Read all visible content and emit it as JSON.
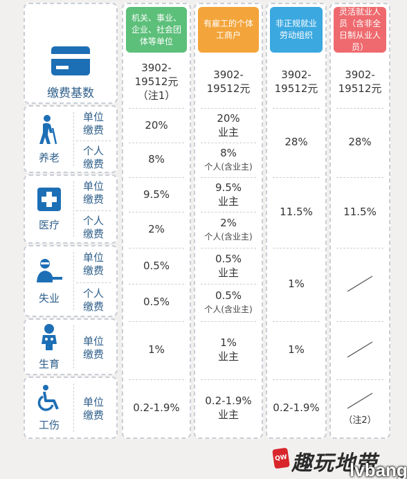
{
  "columns": [
    {
      "header": "机关、事业、企业、社会团体等单位",
      "color": "#5cbf7a"
    },
    {
      "header": "有雇工的个体工商户",
      "color": "#f3a43a"
    },
    {
      "header": "非正规就业劳动组织",
      "color": "#3ba8e0"
    },
    {
      "header": "灵活就业人员（含非全日制从业人员）",
      "color": "#ee6a6e"
    }
  ],
  "base": {
    "label": "缴费基数",
    "icon": "card-icon",
    "values": [
      {
        "line1": "3902-",
        "line2": "19512元",
        "line3": "（注1）"
      },
      {
        "line1": "3902-",
        "line2": "19512元",
        "line3": ""
      },
      {
        "line1": "3902-",
        "line2": "19512元",
        "line3": ""
      },
      {
        "line1": "3902-",
        "line2": "19512元",
        "line3": ""
      }
    ]
  },
  "categories": {
    "pension": {
      "name": "养老",
      "icon": "elderly-person-icon",
      "unit_label": "单位缴费",
      "personal_label": "个人缴费",
      "c1_unit": "20%",
      "c1_personal": "8%",
      "c2_unit": "20%",
      "c2_unit_sub": "业主",
      "c2_personal": "8%",
      "c2_personal_sub": "个人(含业主)",
      "c3": "28%",
      "c4": "28%"
    },
    "medical": {
      "name": "医疗",
      "icon": "medical-cross-icon",
      "unit_label": "单位缴费",
      "personal_label": "个人缴费",
      "c1_unit": "9.5%",
      "c1_personal": "2%",
      "c2_unit": "9.5%",
      "c2_unit_sub": "业主",
      "c2_personal": "2%",
      "c2_personal_sub": "个人(含业主)",
      "c3": "11.5%",
      "c4": "11.5%"
    },
    "unemployment": {
      "name": "失业",
      "icon": "worker-desk-icon",
      "unit_label": "单位缴费",
      "personal_label": "个人缴费",
      "c1_unit": "0.5%",
      "c1_personal": "0.5%",
      "c2_unit": "0.5%",
      "c2_unit_sub": "业主",
      "c2_personal": "0.5%",
      "c2_personal_sub": "个人(含业主)",
      "c3": "1%"
    },
    "maternity": {
      "name": "生育",
      "icon": "baby-icon",
      "unit_label": "单位缴费",
      "c1": "1%",
      "c2": "1%",
      "c2_sub": "业主",
      "c3": "1%"
    },
    "injury": {
      "name": "工伤",
      "icon": "wheelchair-icon",
      "unit_label": "单位缴费",
      "c1": "0.2-1.9%",
      "c2": "0.2-1.9%",
      "c2_sub": "业主",
      "c3": "0.2-1.9%",
      "c4_note": "（注2）"
    }
  },
  "watermark": {
    "logo_text": "QW",
    "text": "趣玩地带",
    "brand": "lvbang"
  }
}
